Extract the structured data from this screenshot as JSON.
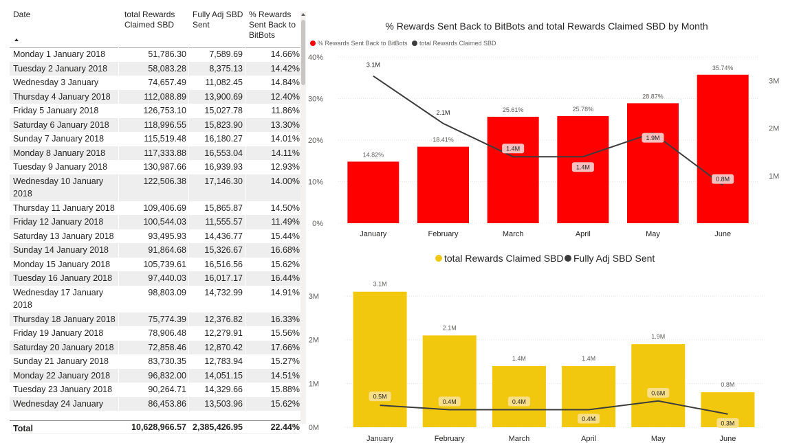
{
  "table": {
    "headers": {
      "date": "Date",
      "rewards": "total Rewards\nClaimed SBD",
      "adj": "Fully Adj SBD\nSent",
      "pct": "% Rewards\nSent Back to\nBitBots"
    },
    "rows": [
      {
        "date": "Monday 1 January 2018",
        "rewards": "51,786.30",
        "adj": "7,589.69",
        "pct": "14.66%"
      },
      {
        "date": "Tuesday 2 January 2018",
        "rewards": "58,083.28",
        "adj": "8,375.13",
        "pct": "14.42%"
      },
      {
        "date": "Wednesday 3 January 2018",
        "rewards": "74,657.49",
        "adj": "11,082.45",
        "pct": "14.84%"
      },
      {
        "date": "Thursday 4 January 2018",
        "rewards": "112,088.89",
        "adj": "13,900.69",
        "pct": "12.40%"
      },
      {
        "date": "Friday 5 January 2018",
        "rewards": "126,753.10",
        "adj": "15,027.78",
        "pct": "11.86%"
      },
      {
        "date": "Saturday 6 January 2018",
        "rewards": "118,996.55",
        "adj": "15,823.90",
        "pct": "13.30%"
      },
      {
        "date": "Sunday 7 January 2018",
        "rewards": "115,519.48",
        "adj": "16,180.27",
        "pct": "14.01%"
      },
      {
        "date": "Monday 8 January 2018",
        "rewards": "117,333.88",
        "adj": "16,553.04",
        "pct": "14.11%"
      },
      {
        "date": "Tuesday 9 January 2018",
        "rewards": "130,987.66",
        "adj": "16,939.93",
        "pct": "12.93%"
      },
      {
        "date": "Wednesday 10 January 2018",
        "rewards": "122,506.38",
        "adj": "17,146.30",
        "pct": "14.00%"
      },
      {
        "date": "Thursday 11 January 2018",
        "rewards": "109,406.69",
        "adj": "15,865.87",
        "pct": "14.50%"
      },
      {
        "date": "Friday 12 January 2018",
        "rewards": "100,544.03",
        "adj": "11,555.57",
        "pct": "11.49%"
      },
      {
        "date": "Saturday 13 January 2018",
        "rewards": "93,495.93",
        "adj": "14,436.77",
        "pct": "15.44%"
      },
      {
        "date": "Sunday 14 January 2018",
        "rewards": "91,864.68",
        "adj": "15,326.67",
        "pct": "16.68%"
      },
      {
        "date": "Monday 15 January 2018",
        "rewards": "105,739.61",
        "adj": "16,516.56",
        "pct": "15.62%"
      },
      {
        "date": "Tuesday 16 January 2018",
        "rewards": "97,440.03",
        "adj": "16,017.17",
        "pct": "16.44%"
      },
      {
        "date": "Wednesday 17 January 2018",
        "rewards": "98,803.09",
        "adj": "14,732.99",
        "pct": "14.91%"
      },
      {
        "date": "Thursday 18 January 2018",
        "rewards": "75,774.39",
        "adj": "12,376.82",
        "pct": "16.33%"
      },
      {
        "date": "Friday 19 January 2018",
        "rewards": "78,906.48",
        "adj": "12,279.91",
        "pct": "15.56%"
      },
      {
        "date": "Saturday 20 January 2018",
        "rewards": "72,858.46",
        "adj": "12,870.42",
        "pct": "17.66%"
      },
      {
        "date": "Sunday 21 January 2018",
        "rewards": "83,730.35",
        "adj": "12,783.94",
        "pct": "15.27%"
      },
      {
        "date": "Monday 22 January 2018",
        "rewards": "96,832.00",
        "adj": "14,051.15",
        "pct": "14.51%"
      },
      {
        "date": "Tuesday 23 January 2018",
        "rewards": "90,264.71",
        "adj": "14,329.66",
        "pct": "15.88%"
      },
      {
        "date": "Wednesday 24 January",
        "rewards": "86,453.86",
        "adj": "13,503.96",
        "pct": "15.62%"
      }
    ],
    "total": {
      "label": "Total",
      "rewards": "10,628,966.57",
      "adj": "2,385,426.95",
      "pct": "22.44%"
    }
  },
  "colors": {
    "red": "#ff0000",
    "yellow": "#f2c80f",
    "line": "#3c3c3c",
    "label_pill": "#f4c0c0",
    "label_pill_yellow": "#f7df8a"
  },
  "chart_data": [
    {
      "type": "bar+line",
      "title": "% Rewards Sent Back to BitBots and total Rewards Claimed SBD by Month",
      "legend_position": "top-left",
      "categories": [
        "January",
        "February",
        "March",
        "April",
        "May",
        "June"
      ],
      "y_left": {
        "ticks": [
          "0%",
          "10%",
          "20%",
          "30%",
          "40%"
        ],
        "range": [
          0,
          40
        ]
      },
      "y_right": {
        "ticks": [
          "1M",
          "2M",
          "3M"
        ],
        "range": [
          0,
          3.5
        ]
      },
      "series": [
        {
          "name": "% Rewards Sent Back to BitBots",
          "kind": "bar",
          "axis": "left",
          "values": [
            14.82,
            18.41,
            25.61,
            25.78,
            28.87,
            35.74
          ],
          "labels": [
            "14.82%",
            "18.41%",
            "25.61%",
            "25.78%",
            "28.87%",
            "35.74%"
          ]
        },
        {
          "name": "total Rewards Claimed SBD",
          "kind": "line",
          "axis": "right",
          "values": [
            3.1,
            2.1,
            1.4,
            1.4,
            1.9,
            0.8
          ],
          "labels": [
            "3.1M",
            "2.1M",
            "1.4M",
            "1.4M",
            "1.9M",
            "0.8M"
          ]
        }
      ]
    },
    {
      "type": "bar+line",
      "title": "",
      "legend_position": "top-center",
      "categories": [
        "January",
        "February",
        "March",
        "April",
        "May",
        "June"
      ],
      "y_left": {
        "ticks": [
          "0M",
          "1M",
          "2M",
          "3M"
        ],
        "range": [
          0,
          3.3
        ]
      },
      "series": [
        {
          "name": "total Rewards Claimed SBD",
          "kind": "bar",
          "values": [
            3.1,
            2.1,
            1.4,
            1.4,
            1.9,
            0.8
          ],
          "labels": [
            "3.1M",
            "2.1M",
            "1.4M",
            "1.4M",
            "1.9M",
            "0.8M"
          ]
        },
        {
          "name": "Fully Adj SBD Sent",
          "kind": "line",
          "values": [
            0.5,
            0.4,
            0.4,
            0.4,
            0.6,
            0.3
          ],
          "labels": [
            "0.5M",
            "0.4M",
            "0.4M",
            "0.4M",
            "0.6M",
            "0.3M"
          ]
        }
      ]
    }
  ]
}
